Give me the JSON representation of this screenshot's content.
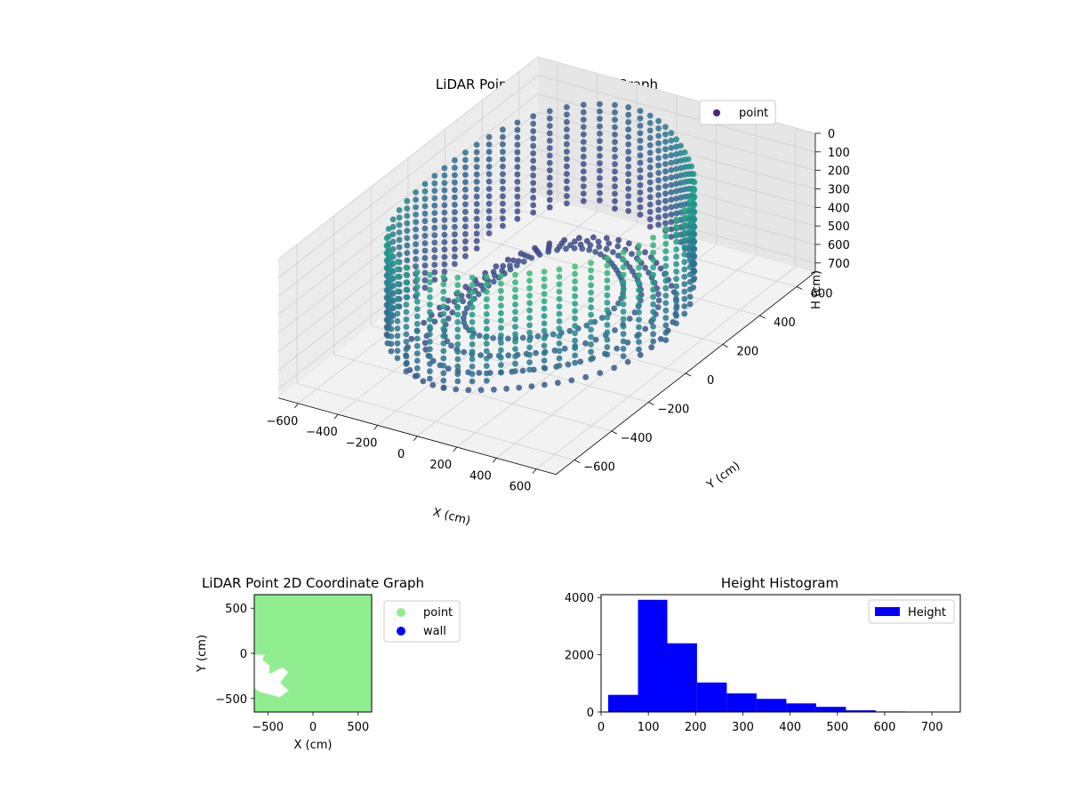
{
  "chart_data": [
    {
      "type": "scatter",
      "projection": "3d",
      "title": "LiDAR Point 3D Coordinate Graph",
      "xlabel": "X (cm)",
      "ylabel": "Y (cm)",
      "zlabel": "H (cm)",
      "xlim": [
        -700,
        700
      ],
      "ylim": [
        -700,
        700
      ],
      "zlim": [
        0,
        750
      ],
      "z_inverted": true,
      "x_ticks": [
        -600,
        -400,
        -200,
        0,
        200,
        400,
        600
      ],
      "y_ticks": [
        -600,
        -400,
        -200,
        0,
        200,
        400,
        600
      ],
      "z_ticks": [
        0,
        100,
        200,
        300,
        400,
        500,
        600,
        700
      ],
      "grid": true,
      "legend": {
        "position": "upper-right",
        "entries": [
          "point"
        ]
      },
      "colormap": "viridis",
      "series": [
        {
          "name": "point",
          "legend_color": "#48287a",
          "description_values": {
            "wall_radius": 600,
            "wall_height_min": 0,
            "wall_height_max": 600,
            "floor_height": 700
          }
        }
      ]
    },
    {
      "type": "scatter",
      "title": "LiDAR Point 2D Coordinate Graph",
      "xlabel": "X (cm)",
      "ylabel": "Y (cm)",
      "xlim": [
        -650,
        650
      ],
      "ylim": [
        -650,
        650
      ],
      "x_ticks": [
        -500,
        0,
        500
      ],
      "y_ticks": [
        -500,
        0,
        500
      ],
      "grid": false,
      "legend": {
        "position": "outside-right",
        "entries": [
          "point",
          "wall"
        ]
      },
      "series": [
        {
          "name": "point",
          "color": "#90ee90"
        },
        {
          "name": "wall",
          "color": "#0000ff"
        }
      ]
    },
    {
      "type": "bar",
      "subtype": "histogram",
      "title": "Height Histogram",
      "xlabel": "",
      "ylabel": "",
      "xlim": [
        0,
        760
      ],
      "ylim": [
        0,
        4100
      ],
      "x_ticks": [
        0,
        100,
        200,
        300,
        400,
        500,
        600,
        700
      ],
      "y_ticks": [
        0,
        2000,
        4000
      ],
      "legend": {
        "position": "upper-right",
        "entries": [
          "Height"
        ]
      },
      "series": [
        {
          "name": "Height",
          "color": "#0000ff",
          "bin_edges": [
            15,
            78,
            140,
            203,
            266,
            329,
            392,
            455,
            518,
            581,
            644,
            707
          ],
          "counts": [
            600,
            3920,
            2400,
            1030,
            650,
            460,
            300,
            180,
            60,
            20,
            15
          ]
        }
      ]
    }
  ]
}
